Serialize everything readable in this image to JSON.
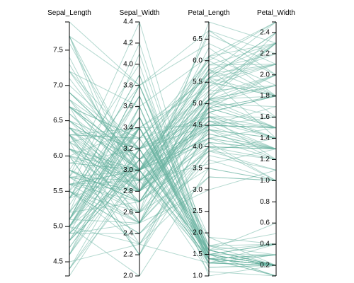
{
  "chart_data": {
    "type": "parallel-coordinates",
    "line_color": "#69b3a2",
    "dimensions": [
      {
        "name": "Sepal_Length",
        "label": "Sepal_Length",
        "domain": [
          4.3,
          7.9
        ],
        "ticks": [
          "4.5",
          "5.0",
          "5.5",
          "6.0",
          "6.5",
          "7.0",
          "7.5"
        ]
      },
      {
        "name": "Sepal_Width",
        "label": "Sepal_Width",
        "domain": [
          2.0,
          4.4
        ],
        "ticks": [
          "2.0",
          "2.2",
          "2.4",
          "2.6",
          "2.8",
          "3.0",
          "3.2",
          "3.4",
          "3.6",
          "3.8",
          "4.0",
          "4.2",
          "4.4"
        ]
      },
      {
        "name": "Petal_Length",
        "label": "Petal_Length",
        "domain": [
          1.0,
          6.9
        ],
        "ticks": [
          "1.0",
          "1.5",
          "2.0",
          "2.5",
          "3.0",
          "3.5",
          "4.0",
          "4.5",
          "5.0",
          "5.5",
          "6.0",
          "6.5"
        ]
      },
      {
        "name": "Petal_Width",
        "label": "Petal_Width",
        "domain": [
          0.1,
          2.5
        ],
        "ticks": [
          "0.2",
          "0.4",
          "0.6",
          "0.8",
          "1.0",
          "1.2",
          "1.4",
          "1.6",
          "1.8",
          "2.0",
          "2.2",
          "2.4"
        ]
      }
    ],
    "rows": [
      [
        5.1,
        3.5,
        1.4,
        0.2
      ],
      [
        4.9,
        3.0,
        1.4,
        0.2
      ],
      [
        4.7,
        3.2,
        1.3,
        0.2
      ],
      [
        4.6,
        3.1,
        1.5,
        0.2
      ],
      [
        5.0,
        3.6,
        1.4,
        0.2
      ],
      [
        5.4,
        3.9,
        1.7,
        0.4
      ],
      [
        4.6,
        3.4,
        1.4,
        0.3
      ],
      [
        5.0,
        3.4,
        1.5,
        0.2
      ],
      [
        4.4,
        2.9,
        1.4,
        0.2
      ],
      [
        4.9,
        3.1,
        1.5,
        0.1
      ],
      [
        5.4,
        3.7,
        1.5,
        0.2
      ],
      [
        4.8,
        3.4,
        1.6,
        0.2
      ],
      [
        4.8,
        3.0,
        1.4,
        0.1
      ],
      [
        4.3,
        3.0,
        1.1,
        0.1
      ],
      [
        5.8,
        4.0,
        1.2,
        0.2
      ],
      [
        5.7,
        4.4,
        1.5,
        0.4
      ],
      [
        5.4,
        3.9,
        1.3,
        0.4
      ],
      [
        5.1,
        3.5,
        1.4,
        0.3
      ],
      [
        5.7,
        3.8,
        1.7,
        0.3
      ],
      [
        5.1,
        3.8,
        1.5,
        0.3
      ],
      [
        5.4,
        3.4,
        1.7,
        0.2
      ],
      [
        5.1,
        3.7,
        1.5,
        0.4
      ],
      [
        4.6,
        3.6,
        1.0,
        0.2
      ],
      [
        5.1,
        3.3,
        1.7,
        0.5
      ],
      [
        4.8,
        3.4,
        1.9,
        0.2
      ],
      [
        5.0,
        3.0,
        1.6,
        0.2
      ],
      [
        5.0,
        3.4,
        1.6,
        0.4
      ],
      [
        5.2,
        3.5,
        1.5,
        0.2
      ],
      [
        5.2,
        3.4,
        1.4,
        0.2
      ],
      [
        4.7,
        3.2,
        1.6,
        0.2
      ],
      [
        4.8,
        3.1,
        1.6,
        0.2
      ],
      [
        5.4,
        3.4,
        1.5,
        0.4
      ],
      [
        5.2,
        4.1,
        1.5,
        0.1
      ],
      [
        5.5,
        4.2,
        1.4,
        0.2
      ],
      [
        4.9,
        3.1,
        1.5,
        0.2
      ],
      [
        5.0,
        3.2,
        1.2,
        0.2
      ],
      [
        5.5,
        3.5,
        1.3,
        0.2
      ],
      [
        4.9,
        3.6,
        1.4,
        0.1
      ],
      [
        4.4,
        3.0,
        1.3,
        0.2
      ],
      [
        5.1,
        3.4,
        1.5,
        0.2
      ],
      [
        5.0,
        3.5,
        1.3,
        0.3
      ],
      [
        4.5,
        2.3,
        1.3,
        0.3
      ],
      [
        4.4,
        3.2,
        1.3,
        0.2
      ],
      [
        5.0,
        3.5,
        1.6,
        0.6
      ],
      [
        5.1,
        3.8,
        1.9,
        0.4
      ],
      [
        4.8,
        3.0,
        1.4,
        0.3
      ],
      [
        5.1,
        3.8,
        1.6,
        0.2
      ],
      [
        4.6,
        3.2,
        1.4,
        0.2
      ],
      [
        5.3,
        3.7,
        1.5,
        0.2
      ],
      [
        5.0,
        3.3,
        1.4,
        0.2
      ],
      [
        7.0,
        3.2,
        4.7,
        1.4
      ],
      [
        6.4,
        3.2,
        4.5,
        1.5
      ],
      [
        6.9,
        3.1,
        4.9,
        1.5
      ],
      [
        5.5,
        2.3,
        4.0,
        1.3
      ],
      [
        6.5,
        2.8,
        4.6,
        1.5
      ],
      [
        5.7,
        2.8,
        4.5,
        1.3
      ],
      [
        6.3,
        3.3,
        4.7,
        1.6
      ],
      [
        4.9,
        2.4,
        3.3,
        1.0
      ],
      [
        6.6,
        2.9,
        4.6,
        1.3
      ],
      [
        5.2,
        2.7,
        3.9,
        1.4
      ],
      [
        5.0,
        2.0,
        3.5,
        1.0
      ],
      [
        5.9,
        3.0,
        4.2,
        1.5
      ],
      [
        6.0,
        2.2,
        4.0,
        1.0
      ],
      [
        6.1,
        2.9,
        4.7,
        1.4
      ],
      [
        5.6,
        2.9,
        3.6,
        1.3
      ],
      [
        6.7,
        3.1,
        4.4,
        1.4
      ],
      [
        5.6,
        3.0,
        4.5,
        1.5
      ],
      [
        5.8,
        2.7,
        4.1,
        1.0
      ],
      [
        6.2,
        2.2,
        4.5,
        1.5
      ],
      [
        5.6,
        2.5,
        3.9,
        1.1
      ],
      [
        5.9,
        3.2,
        4.8,
        1.8
      ],
      [
        6.1,
        2.8,
        4.0,
        1.3
      ],
      [
        6.3,
        2.5,
        4.9,
        1.5
      ],
      [
        6.1,
        2.8,
        4.7,
        1.2
      ],
      [
        6.4,
        2.9,
        4.3,
        1.3
      ],
      [
        6.6,
        3.0,
        4.4,
        1.4
      ],
      [
        6.8,
        2.8,
        4.8,
        1.4
      ],
      [
        6.7,
        3.0,
        5.0,
        1.7
      ],
      [
        6.0,
        2.9,
        4.5,
        1.5
      ],
      [
        5.7,
        2.6,
        3.5,
        1.0
      ],
      [
        5.5,
        2.4,
        3.8,
        1.1
      ],
      [
        5.5,
        2.4,
        3.7,
        1.0
      ],
      [
        5.8,
        2.7,
        3.9,
        1.2
      ],
      [
        6.0,
        2.7,
        5.1,
        1.6
      ],
      [
        5.4,
        3.0,
        4.5,
        1.5
      ],
      [
        6.0,
        3.4,
        4.5,
        1.6
      ],
      [
        6.7,
        3.1,
        4.7,
        1.5
      ],
      [
        6.3,
        2.3,
        4.4,
        1.3
      ],
      [
        5.6,
        3.0,
        4.1,
        1.3
      ],
      [
        5.5,
        2.5,
        4.0,
        1.3
      ],
      [
        5.5,
        2.6,
        4.4,
        1.2
      ],
      [
        6.1,
        3.0,
        4.6,
        1.4
      ],
      [
        5.8,
        2.6,
        4.0,
        1.2
      ],
      [
        5.0,
        2.3,
        3.3,
        1.0
      ],
      [
        5.6,
        2.7,
        4.2,
        1.3
      ],
      [
        5.7,
        3.0,
        4.2,
        1.2
      ],
      [
        5.7,
        2.9,
        4.2,
        1.3
      ],
      [
        6.2,
        2.9,
        4.3,
        1.3
      ],
      [
        5.1,
        2.5,
        3.0,
        1.1
      ],
      [
        5.7,
        2.8,
        4.1,
        1.3
      ],
      [
        6.3,
        3.3,
        6.0,
        2.5
      ],
      [
        5.8,
        2.7,
        5.1,
        1.9
      ],
      [
        7.1,
        3.0,
        5.9,
        2.1
      ],
      [
        6.3,
        2.9,
        5.6,
        1.8
      ],
      [
        6.5,
        3.0,
        5.8,
        2.2
      ],
      [
        7.6,
        3.0,
        6.6,
        2.1
      ],
      [
        4.9,
        2.5,
        4.5,
        1.7
      ],
      [
        7.3,
        2.9,
        6.3,
        1.8
      ],
      [
        6.7,
        2.5,
        5.8,
        1.8
      ],
      [
        7.2,
        3.6,
        6.1,
        2.5
      ],
      [
        6.5,
        3.2,
        5.1,
        2.0
      ],
      [
        6.4,
        2.7,
        5.3,
        1.9
      ],
      [
        6.8,
        3.0,
        5.5,
        2.1
      ],
      [
        5.7,
        2.5,
        5.0,
        2.0
      ],
      [
        5.8,
        2.8,
        5.1,
        2.4
      ],
      [
        6.4,
        3.2,
        5.3,
        2.3
      ],
      [
        6.5,
        3.0,
        5.5,
        1.8
      ],
      [
        7.7,
        3.8,
        6.7,
        2.2
      ],
      [
        7.7,
        2.6,
        6.9,
        2.3
      ],
      [
        6.0,
        2.2,
        5.0,
        1.5
      ],
      [
        6.9,
        3.2,
        5.7,
        2.3
      ],
      [
        5.6,
        2.8,
        4.9,
        2.0
      ],
      [
        7.7,
        2.8,
        6.7,
        2.0
      ],
      [
        6.3,
        2.7,
        4.9,
        1.8
      ],
      [
        6.7,
        3.3,
        5.7,
        2.1
      ],
      [
        7.2,
        3.2,
        6.0,
        1.8
      ],
      [
        6.2,
        2.8,
        4.8,
        1.8
      ],
      [
        6.1,
        3.0,
        4.9,
        1.8
      ],
      [
        6.4,
        2.8,
        5.6,
        2.1
      ],
      [
        7.2,
        3.0,
        5.8,
        1.6
      ],
      [
        7.4,
        2.8,
        6.1,
        1.9
      ],
      [
        7.9,
        3.8,
        6.4,
        2.0
      ],
      [
        6.4,
        2.8,
        5.6,
        2.2
      ],
      [
        6.3,
        2.8,
        5.1,
        1.5
      ],
      [
        6.1,
        2.6,
        5.6,
        1.4
      ],
      [
        7.7,
        3.0,
        6.1,
        2.3
      ],
      [
        6.3,
        3.4,
        5.6,
        2.4
      ],
      [
        6.4,
        3.1,
        5.5,
        1.8
      ],
      [
        6.0,
        3.0,
        4.8,
        1.8
      ],
      [
        6.9,
        3.1,
        5.4,
        2.1
      ],
      [
        6.7,
        3.1,
        5.6,
        2.4
      ],
      [
        6.9,
        3.1,
        5.1,
        2.3
      ],
      [
        5.8,
        2.7,
        5.1,
        1.9
      ],
      [
        6.8,
        3.2,
        5.9,
        2.3
      ],
      [
        6.7,
        3.3,
        5.7,
        2.5
      ],
      [
        6.7,
        3.0,
        5.2,
        2.3
      ],
      [
        6.3,
        2.5,
        5.0,
        1.9
      ],
      [
        6.5,
        3.0,
        5.2,
        2.0
      ],
      [
        6.2,
        3.4,
        5.4,
        2.3
      ],
      [
        5.9,
        3.0,
        5.1,
        1.8
      ]
    ]
  }
}
